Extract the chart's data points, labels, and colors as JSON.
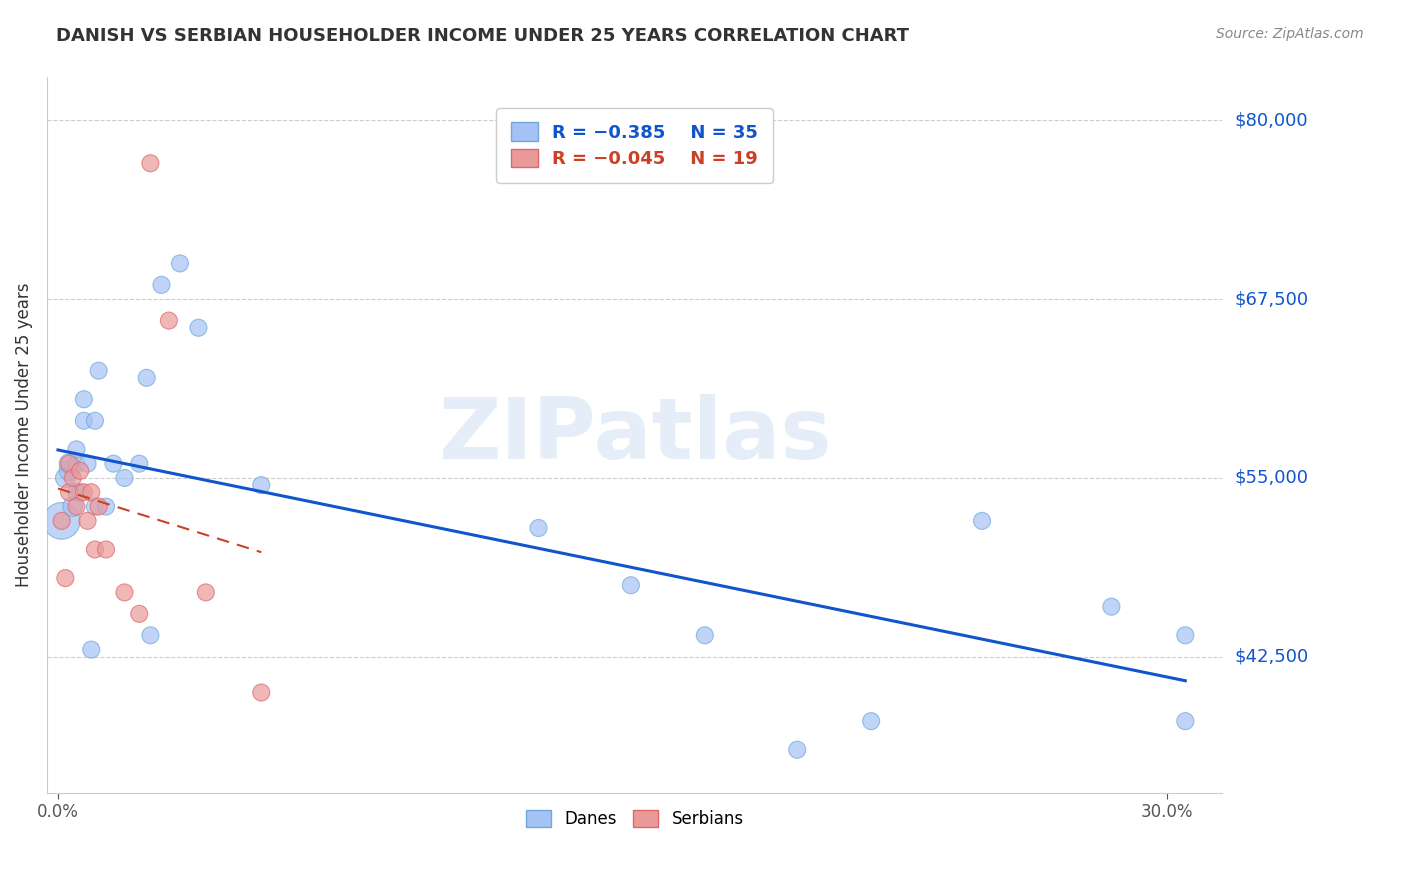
{
  "title": "DANISH VS SERBIAN HOUSEHOLDER INCOME UNDER 25 YEARS CORRELATION CHART",
  "source": "Source: ZipAtlas.com",
  "ylabel": "Householder Income Under 25 years",
  "ytick_values": [
    80000,
    67500,
    55000,
    42500
  ],
  "ytick_labels": [
    "$80,000",
    "$67,500",
    "$55,000",
    "$42,500"
  ],
  "ymin": 33000,
  "ymax": 83000,
  "xmin": -0.003,
  "xmax": 0.315,
  "legend_blue_r": "R = −0.385",
  "legend_blue_n": "N = 35",
  "legend_pink_r": "R = −0.045",
  "legend_pink_n": "N = 19",
  "legend_blue_label": "Danes",
  "legend_pink_label": "Serbians",
  "watermark": "ZIPatlas",
  "blue_scatter_color": "#a4c2f4",
  "blue_scatter_edge": "#6fa8dc",
  "pink_scatter_color": "#ea9999",
  "pink_scatter_edge": "#e06666",
  "blue_line_color": "#1155cc",
  "pink_line_color": "#cc4125",
  "grid_color": "#cccccc",
  "title_color": "#333333",
  "source_color": "#888888",
  "ylabel_color": "#333333",
  "right_label_color": "#1155cc",
  "danes_x": [
    0.001,
    0.002,
    0.003,
    0.003,
    0.004,
    0.005,
    0.005,
    0.005,
    0.006,
    0.007,
    0.007,
    0.008,
    0.009,
    0.01,
    0.01,
    0.011,
    0.013,
    0.015,
    0.018,
    0.022,
    0.024,
    0.025,
    0.028,
    0.033,
    0.038,
    0.055,
    0.13,
    0.155,
    0.175,
    0.2,
    0.22,
    0.25,
    0.285,
    0.305,
    0.305
  ],
  "danes_y": [
    52000,
    55000,
    55500,
    56000,
    53000,
    54000,
    56000,
    57000,
    54000,
    59000,
    60500,
    56000,
    43000,
    53000,
    59000,
    62500,
    53000,
    56000,
    55000,
    56000,
    62000,
    44000,
    68500,
    70000,
    65500,
    54500,
    51500,
    47500,
    44000,
    36000,
    38000,
    52000,
    46000,
    44000,
    38000
  ],
  "danes_sizes": [
    700,
    200,
    200,
    200,
    200,
    150,
    150,
    150,
    150,
    150,
    150,
    150,
    150,
    150,
    150,
    150,
    150,
    150,
    150,
    150,
    150,
    150,
    150,
    150,
    150,
    150,
    150,
    150,
    150,
    150,
    150,
    150,
    150,
    150,
    150
  ],
  "serbians_x": [
    0.001,
    0.002,
    0.003,
    0.003,
    0.004,
    0.005,
    0.006,
    0.007,
    0.008,
    0.009,
    0.01,
    0.011,
    0.013,
    0.018,
    0.022,
    0.025,
    0.03,
    0.04,
    0.055
  ],
  "serbians_y": [
    52000,
    48000,
    54000,
    56000,
    55000,
    53000,
    55500,
    54000,
    52000,
    54000,
    50000,
    53000,
    50000,
    47000,
    45500,
    77000,
    66000,
    47000,
    40000
  ],
  "serbians_sizes": [
    150,
    150,
    150,
    150,
    150,
    150,
    150,
    150,
    150,
    150,
    150,
    150,
    150,
    150,
    150,
    150,
    150,
    150,
    150
  ]
}
